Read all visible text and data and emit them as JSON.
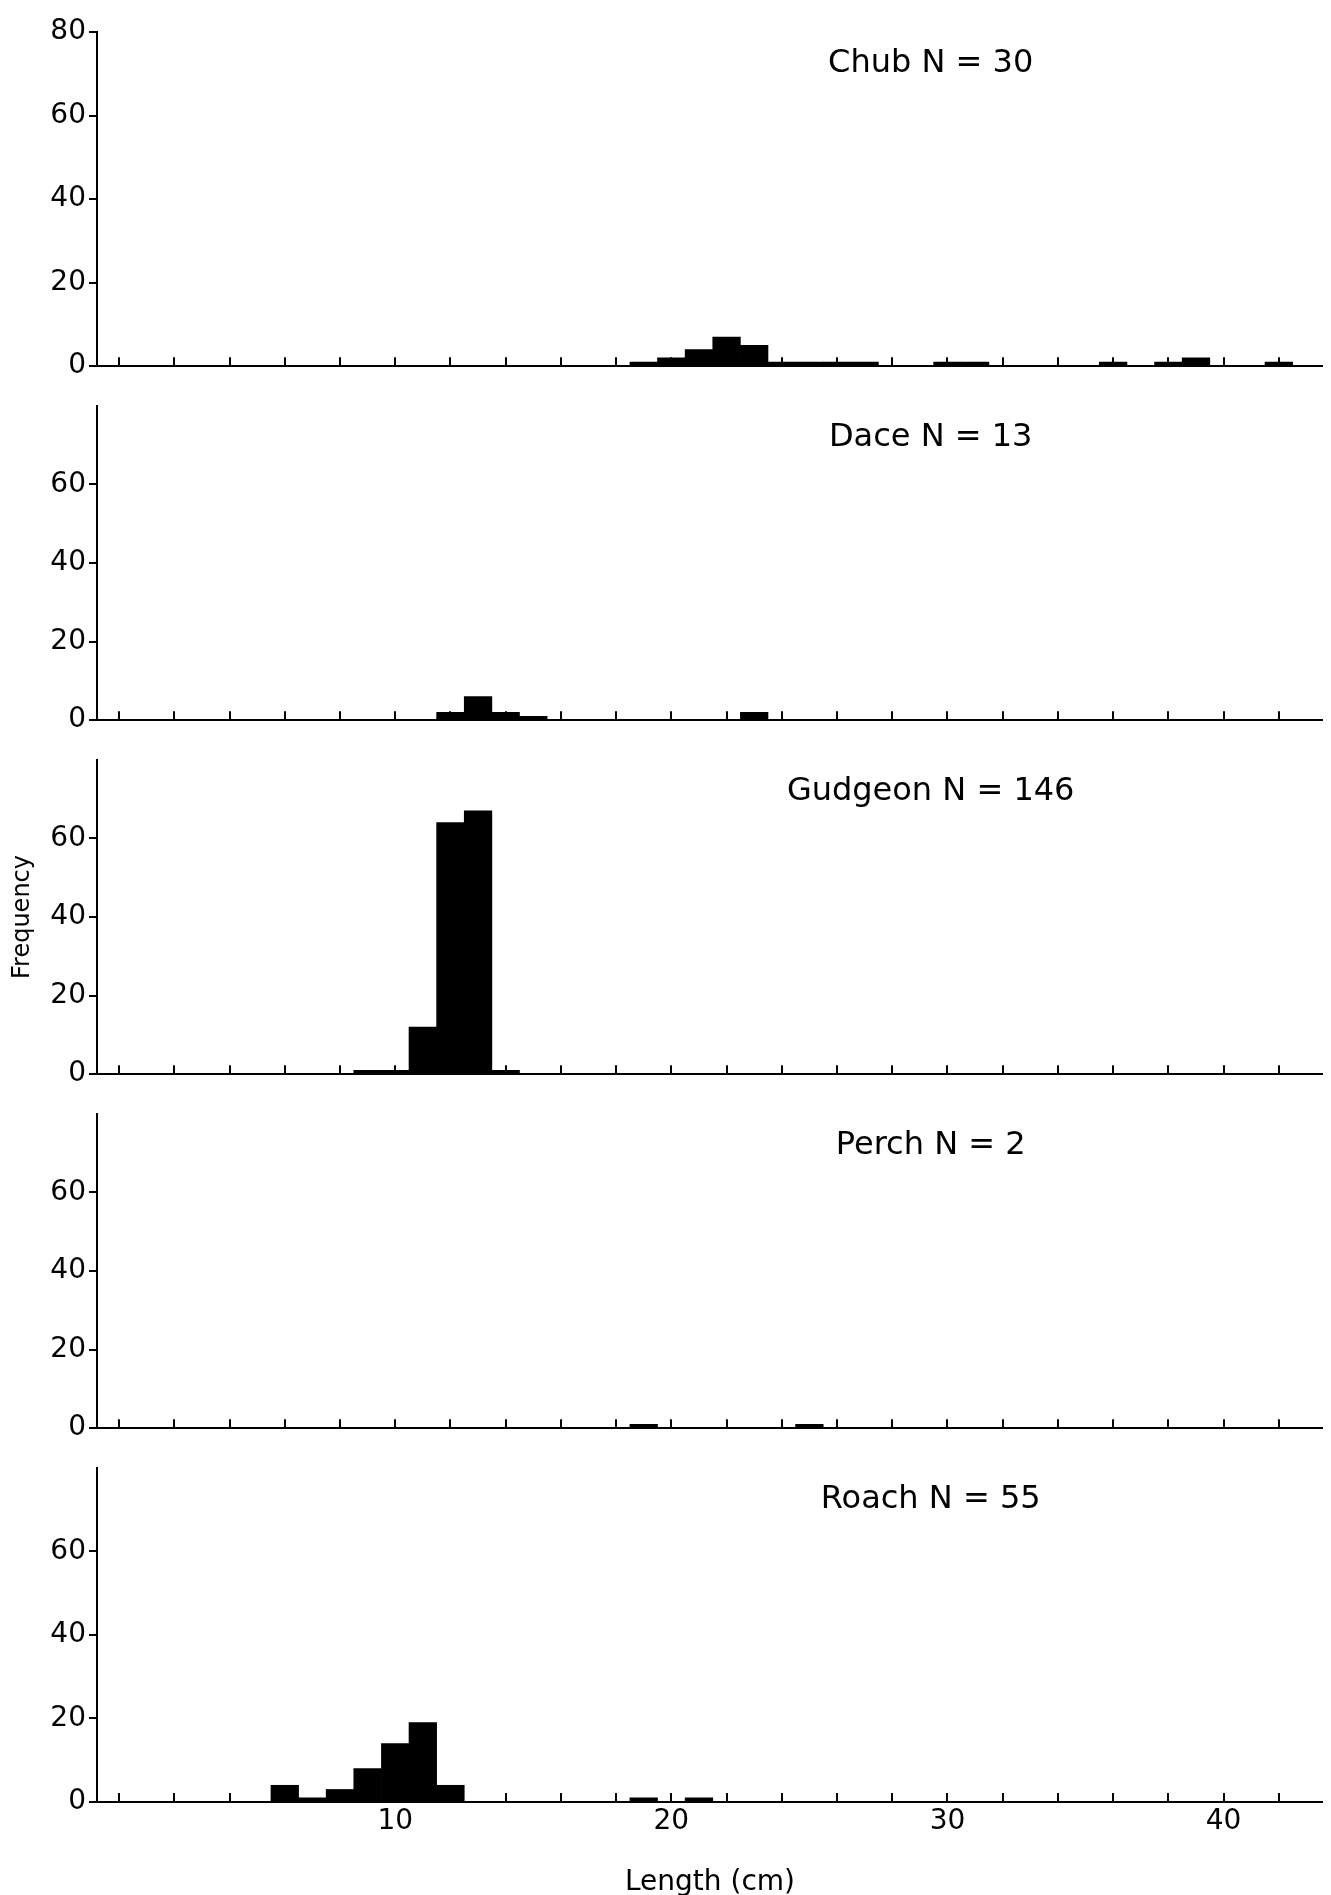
{
  "chart_data": [
    {
      "type": "histogram",
      "title": "Chub N = 30",
      "color": "#000000",
      "tick_labels": "y",
      "bins": [
        0.5,
        1.5,
        2.5,
        3.5,
        4.5,
        5.5,
        6.5,
        7.5,
        8.5,
        9.5,
        10.5,
        11.5,
        12.5,
        13.5,
        14.5,
        15.5,
        16.5,
        17.5,
        18.5,
        19.5,
        20.5,
        21.5,
        22.5,
        23.5,
        24.5,
        25.5,
        26.5,
        27.5,
        28.5,
        29.5,
        30.5,
        31.5,
        32.5,
        33.5,
        34.5,
        35.5,
        36.5,
        37.5,
        38.5,
        39.5,
        40.5,
        41.5,
        42.5,
        43.5
      ],
      "values": [
        0,
        0,
        0,
        0,
        0,
        0,
        0,
        0,
        0,
        0,
        0,
        0,
        0,
        0,
        0,
        0,
        0,
        0,
        1,
        2,
        4,
        7,
        5,
        1,
        1,
        1,
        1,
        0,
        0,
        1,
        1,
        0,
        0,
        0,
        0,
        1,
        0,
        1,
        2,
        0,
        0,
        1,
        0
      ],
      "xlim": [
        -0.8,
        43.6
      ],
      "ylim": [
        0,
        80
      ],
      "yticks": [
        0,
        20,
        40,
        60,
        80
      ],
      "xticks": [
        {
          "value": 0,
          "label": null
        },
        {
          "value": 2,
          "label": null
        },
        {
          "value": 4,
          "label": null
        },
        {
          "value": 6,
          "label": null
        },
        {
          "value": 8,
          "label": null
        },
        10,
        {
          "value": 12,
          "label": null
        },
        {
          "value": 14,
          "label": null
        },
        {
          "value": 16,
          "label": null
        },
        {
          "value": 18,
          "label": null
        },
        20,
        {
          "value": 22,
          "label": null
        },
        {
          "value": 24,
          "label": null
        },
        {
          "value": 26,
          "label": null
        },
        {
          "value": 28,
          "label": null
        },
        30,
        {
          "value": 32,
          "label": null
        },
        {
          "value": 34,
          "label": null
        },
        {
          "value": 36,
          "label": null
        },
        {
          "value": 38,
          "label": null
        },
        40,
        {
          "value": 42,
          "label": null
        }
      ]
    },
    {
      "type": "histogram",
      "title": "Dace N = 13",
      "color": "#000000",
      "tick_labels": "y",
      "bins": [
        0.5,
        1.5,
        2.5,
        3.5,
        4.5,
        5.5,
        6.5,
        7.5,
        8.5,
        9.5,
        10.5,
        11.5,
        12.5,
        13.5,
        14.5,
        15.5,
        16.5,
        17.5,
        18.5,
        19.5,
        20.5,
        21.5,
        22.5,
        23.5,
        24.5,
        25.5,
        26.5,
        27.5,
        28.5,
        29.5,
        30.5,
        31.5,
        32.5,
        33.5,
        34.5,
        35.5,
        36.5,
        37.5,
        38.5,
        39.5,
        40.5,
        41.5,
        42.5,
        43.5
      ],
      "values": [
        0,
        0,
        0,
        0,
        0,
        0,
        0,
        0,
        0,
        0,
        0,
        2,
        6,
        2,
        1,
        0,
        0,
        0,
        0,
        0,
        0,
        0,
        2,
        0,
        0,
        0,
        0,
        0,
        0,
        0,
        0,
        0,
        0,
        0,
        0,
        0,
        0,
        0,
        0,
        0,
        0,
        0,
        0
      ],
      "xlim": [
        -0.8,
        43.6
      ],
      "ylim": [
        0,
        80
      ],
      "yticks": [
        0,
        20,
        40,
        60
      ],
      "xticks": [
        {
          "value": 0,
          "label": null
        },
        {
          "value": 2,
          "label": null
        },
        {
          "value": 4,
          "label": null
        },
        {
          "value": 6,
          "label": null
        },
        {
          "value": 8,
          "label": null
        },
        10,
        {
          "value": 12,
          "label": null
        },
        {
          "value": 14,
          "label": null
        },
        {
          "value": 16,
          "label": null
        },
        {
          "value": 18,
          "label": null
        },
        20,
        {
          "value": 22,
          "label": null
        },
        {
          "value": 24,
          "label": null
        },
        {
          "value": 26,
          "label": null
        },
        {
          "value": 28,
          "label": null
        },
        30,
        {
          "value": 32,
          "label": null
        },
        {
          "value": 34,
          "label": null
        },
        {
          "value": 36,
          "label": null
        },
        {
          "value": 38,
          "label": null
        },
        40,
        {
          "value": 42,
          "label": null
        }
      ]
    },
    {
      "type": "histogram",
      "title": "Gudgeon N = 146",
      "ylabel": "Frequency",
      "color": "#000000",
      "tick_labels": "y",
      "bins": [
        0.5,
        1.5,
        2.5,
        3.5,
        4.5,
        5.5,
        6.5,
        7.5,
        8.5,
        9.5,
        10.5,
        11.5,
        12.5,
        13.5,
        14.5,
        15.5,
        16.5,
        17.5,
        18.5,
        19.5,
        20.5,
        21.5,
        22.5,
        23.5,
        24.5,
        25.5,
        26.5,
        27.5,
        28.5,
        29.5,
        30.5,
        31.5,
        32.5,
        33.5,
        34.5,
        35.5,
        36.5,
        37.5,
        38.5,
        39.5,
        40.5,
        41.5,
        42.5,
        43.5
      ],
      "values": [
        0,
        0,
        0,
        0,
        0,
        0,
        0,
        0,
        1,
        1,
        12,
        64,
        67,
        1,
        0,
        0,
        0,
        0,
        0,
        0,
        0,
        0,
        0,
        0,
        0,
        0,
        0,
        0,
        0,
        0,
        0,
        0,
        0,
        0,
        0,
        0,
        0,
        0,
        0,
        0,
        0,
        0,
        0
      ],
      "xlim": [
        -0.8,
        43.6
      ],
      "ylim": [
        0,
        80
      ],
      "yticks": [
        0,
        20,
        40,
        60
      ],
      "xticks": [
        {
          "value": 0,
          "label": null
        },
        {
          "value": 2,
          "label": null
        },
        {
          "value": 4,
          "label": null
        },
        {
          "value": 6,
          "label": null
        },
        {
          "value": 8,
          "label": null
        },
        10,
        {
          "value": 12,
          "label": null
        },
        {
          "value": 14,
          "label": null
        },
        {
          "value": 16,
          "label": null
        },
        {
          "value": 18,
          "label": null
        },
        20,
        {
          "value": 22,
          "label": null
        },
        {
          "value": 24,
          "label": null
        },
        {
          "value": 26,
          "label": null
        },
        {
          "value": 28,
          "label": null
        },
        30,
        {
          "value": 32,
          "label": null
        },
        {
          "value": 34,
          "label": null
        },
        {
          "value": 36,
          "label": null
        },
        {
          "value": 38,
          "label": null
        },
        40,
        {
          "value": 42,
          "label": null
        }
      ]
    },
    {
      "type": "histogram",
      "title": "Perch N = 2",
      "color": "#000000",
      "tick_labels": "y",
      "bins": [
        0.5,
        1.5,
        2.5,
        3.5,
        4.5,
        5.5,
        6.5,
        7.5,
        8.5,
        9.5,
        10.5,
        11.5,
        12.5,
        13.5,
        14.5,
        15.5,
        16.5,
        17.5,
        18.5,
        19.5,
        20.5,
        21.5,
        22.5,
        23.5,
        24.5,
        25.5,
        26.5,
        27.5,
        28.5,
        29.5,
        30.5,
        31.5,
        32.5,
        33.5,
        34.5,
        35.5,
        36.5,
        37.5,
        38.5,
        39.5,
        40.5,
        41.5,
        42.5,
        43.5
      ],
      "values": [
        0,
        0,
        0,
        0,
        0,
        0,
        0,
        0,
        0,
        0,
        0,
        0,
        0,
        0,
        0,
        0,
        0,
        0,
        1,
        0,
        0,
        0,
        0,
        0,
        1,
        0,
        0,
        0,
        0,
        0,
        0,
        0,
        0,
        0,
        0,
        0,
        0,
        0,
        0,
        0,
        0,
        0,
        0
      ],
      "xlim": [
        -0.8,
        43.6
      ],
      "ylim": [
        0,
        80
      ],
      "yticks": [
        0,
        20,
        40,
        60
      ],
      "xticks": [
        {
          "value": 0,
          "label": null
        },
        {
          "value": 2,
          "label": null
        },
        {
          "value": 4,
          "label": null
        },
        {
          "value": 6,
          "label": null
        },
        {
          "value": 8,
          "label": null
        },
        10,
        {
          "value": 12,
          "label": null
        },
        {
          "value": 14,
          "label": null
        },
        {
          "value": 16,
          "label": null
        },
        {
          "value": 18,
          "label": null
        },
        20,
        {
          "value": 22,
          "label": null
        },
        {
          "value": 24,
          "label": null
        },
        {
          "value": 26,
          "label": null
        },
        {
          "value": 28,
          "label": null
        },
        30,
        {
          "value": 32,
          "label": null
        },
        {
          "value": 34,
          "label": null
        },
        {
          "value": 36,
          "label": null
        },
        {
          "value": 38,
          "label": null
        },
        40,
        {
          "value": 42,
          "label": null
        }
      ]
    },
    {
      "type": "histogram",
      "title": "Roach N = 55",
      "xlabel": "Length (cm)",
      "color": "#000000",
      "bins": [
        0.5,
        1.5,
        2.5,
        3.5,
        4.5,
        5.5,
        6.5,
        7.5,
        8.5,
        9.5,
        10.5,
        11.5,
        12.5,
        13.5,
        14.5,
        15.5,
        16.5,
        17.5,
        18.5,
        19.5,
        20.5,
        21.5,
        22.5,
        23.5,
        24.5,
        25.5,
        26.5,
        27.5,
        28.5,
        29.5,
        30.5,
        31.5,
        32.5,
        33.5,
        34.5,
        35.5,
        36.5,
        37.5,
        38.5,
        39.5,
        40.5,
        41.5,
        42.5,
        43.5
      ],
      "values": [
        0,
        0,
        0,
        0,
        0,
        4,
        1,
        3,
        8,
        14,
        19,
        4,
        0,
        0,
        0,
        0,
        0,
        0,
        1,
        0,
        1,
        0,
        0,
        0,
        0,
        0,
        0,
        0,
        0,
        0,
        0,
        0,
        0,
        0,
        0,
        0,
        0,
        0,
        0,
        0,
        0,
        0,
        0
      ],
      "xlim": [
        -0.8,
        43.6
      ],
      "ylim": [
        0,
        80
      ],
      "yticks": [
        0,
        20,
        40,
        60
      ],
      "xticks": [
        {
          "value": 0,
          "label": null
        },
        {
          "value": 2,
          "label": null
        },
        {
          "value": 4,
          "label": null
        },
        {
          "value": 6,
          "label": null
        },
        {
          "value": 8,
          "label": null
        },
        10,
        {
          "value": 12,
          "label": null
        },
        {
          "value": 14,
          "label": null
        },
        {
          "value": 16,
          "label": null
        },
        {
          "value": 18,
          "label": null
        },
        20,
        {
          "value": 22,
          "label": null
        },
        {
          "value": 24,
          "label": null
        },
        {
          "value": 26,
          "label": null
        },
        {
          "value": 28,
          "label": null
        },
        30,
        {
          "value": 32,
          "label": null
        },
        {
          "value": 34,
          "label": null
        },
        {
          "value": 36,
          "label": null
        },
        {
          "value": 38,
          "label": null
        },
        40,
        {
          "value": 42,
          "label": null
        }
      ]
    }
  ]
}
